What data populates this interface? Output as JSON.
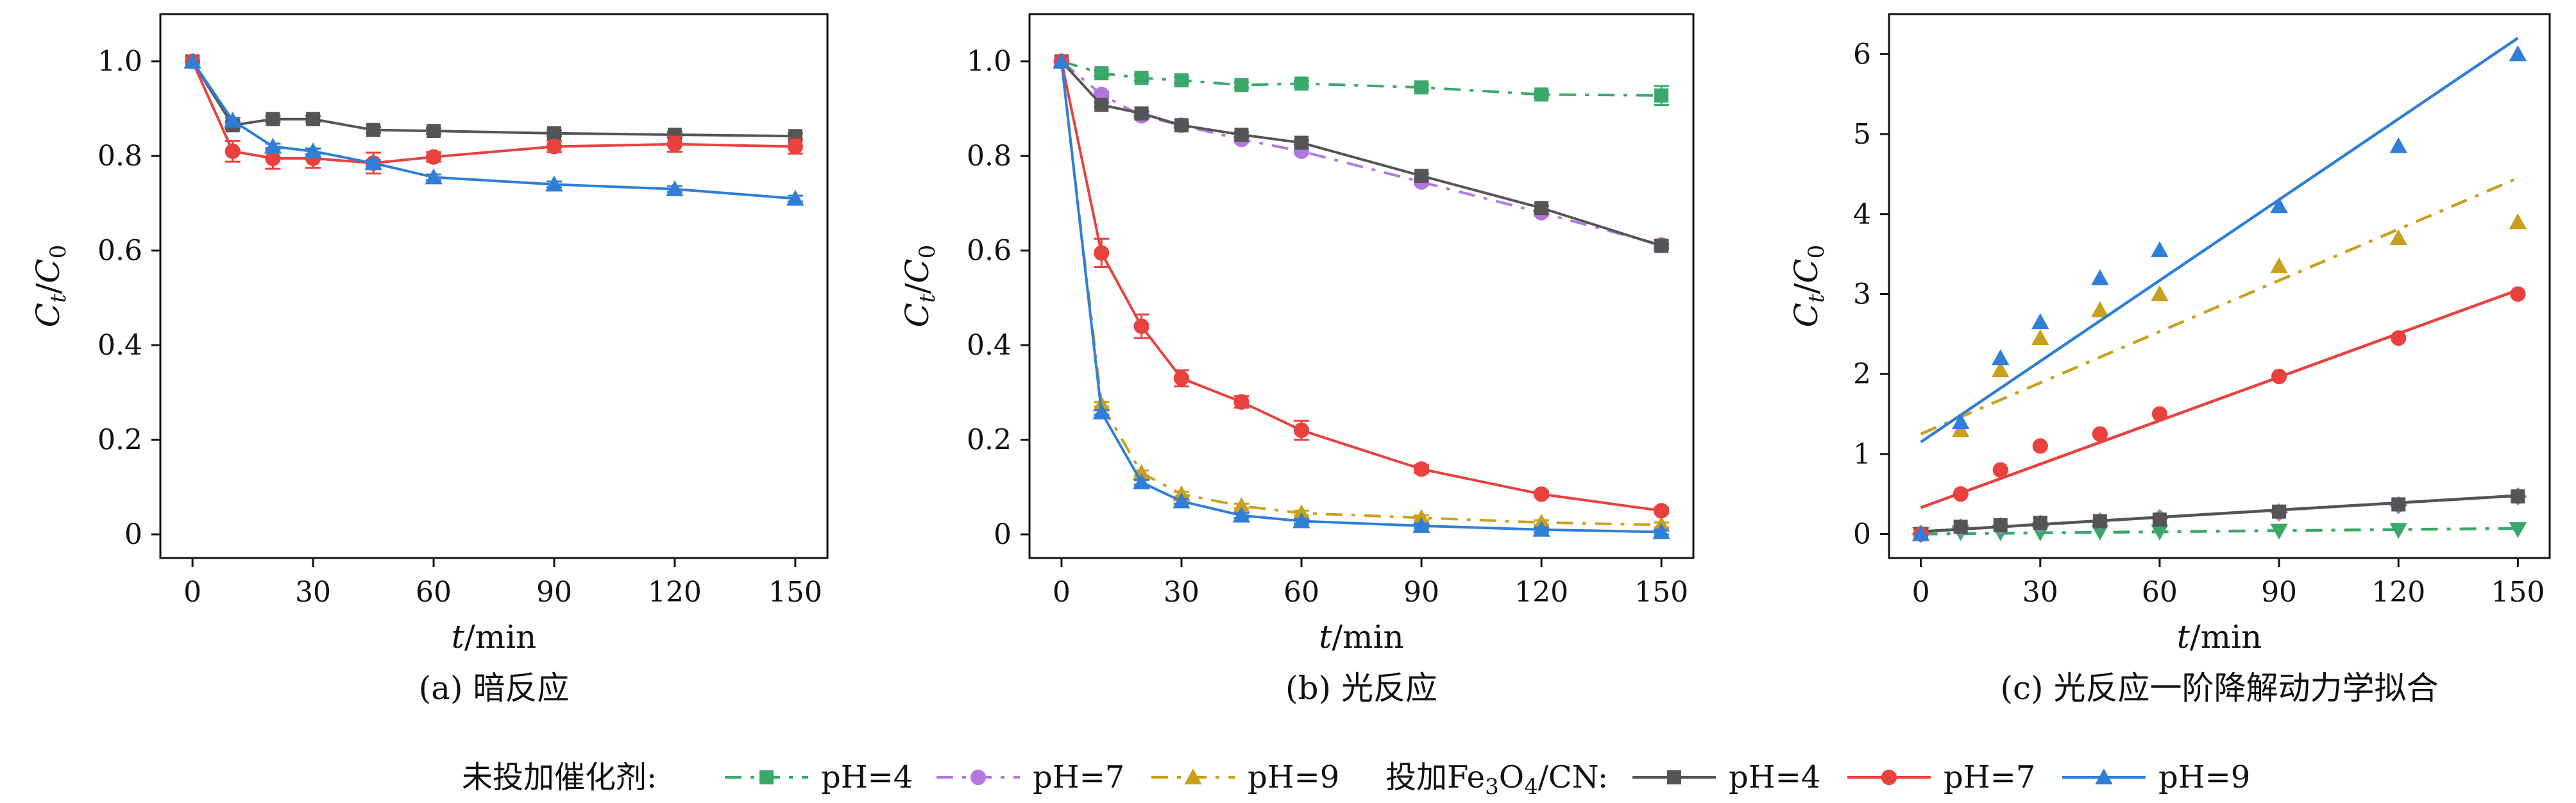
{
  "colors": {
    "green": "#3aa86a",
    "purple": "#b278e0",
    "gold": "#c9a01e",
    "gray": "#555555",
    "red": "#e8413e",
    "blue": "#2f7ed8"
  },
  "legend": {
    "group1_label": "未投加催化剂:",
    "group2_label_prefix": "投加Fe",
    "group2_sub1": "3",
    "group2_mid": "O",
    "group2_sub2": "4",
    "group2_label_suffix": "/CN:",
    "entries": [
      {
        "label": "pH=4",
        "color": "green",
        "marker": "square",
        "dash": true
      },
      {
        "label": "pH=7",
        "color": "purple",
        "marker": "circle",
        "dash": true
      },
      {
        "label": "pH=9",
        "color": "gold",
        "marker": "triangle",
        "dash": true
      },
      {
        "label": "pH=4",
        "color": "gray",
        "marker": "square",
        "dash": false
      },
      {
        "label": "pH=7",
        "color": "red",
        "marker": "circle",
        "dash": false
      },
      {
        "label": "pH=9",
        "color": "blue",
        "marker": "triangle",
        "dash": false
      }
    ]
  },
  "chart_data": [
    {
      "type": "line",
      "caption": "(a) 暗反应",
      "xlabel_var": "t",
      "xlabel_unit": "/min",
      "ylabel_num": "C",
      "ylabel_num_sub": "t",
      "ylabel_den": "C",
      "ylabel_den_sub": "0",
      "xlim": [
        -8,
        158
      ],
      "ylim": [
        -0.05,
        1.1
      ],
      "xticks": [
        0,
        30,
        60,
        90,
        120,
        150
      ],
      "yticks": [
        0,
        0.2,
        0.4,
        0.6,
        0.8,
        1.0
      ],
      "ytick_labels": [
        "0",
        "0.2",
        "0.4",
        "0.6",
        "0.8",
        "1.0"
      ],
      "x": [
        0,
        10,
        20,
        30,
        45,
        60,
        90,
        120,
        150
      ],
      "series": [
        {
          "color": "gray",
          "marker": "square",
          "dash": false,
          "values": [
            1.0,
            0.865,
            0.878,
            0.878,
            0.855,
            0.853,
            0.848,
            0.845,
            0.842
          ],
          "err": [
            0,
            0.008,
            0.006,
            0.006,
            0.006,
            0.006,
            0.006,
            0.006,
            0.006
          ]
        },
        {
          "color": "red",
          "marker": "circle",
          "dash": false,
          "values": [
            1.0,
            0.81,
            0.795,
            0.795,
            0.785,
            0.798,
            0.82,
            0.825,
            0.82
          ],
          "err": [
            0,
            0.022,
            0.022,
            0.02,
            0.022,
            0.01,
            0.012,
            0.016,
            0.015
          ]
        },
        {
          "color": "blue",
          "marker": "triangle",
          "dash": false,
          "values": [
            1.0,
            0.875,
            0.82,
            0.81,
            0.785,
            0.755,
            0.74,
            0.73,
            0.71
          ],
          "err": [
            0,
            0.006,
            0.006,
            0.006,
            0.006,
            0.006,
            0.006,
            0.006,
            0.006
          ]
        }
      ]
    },
    {
      "type": "line",
      "caption": "(b) 光反应",
      "xlabel_var": "t",
      "xlabel_unit": "/min",
      "ylabel_num": "C",
      "ylabel_num_sub": "t",
      "ylabel_den": "C",
      "ylabel_den_sub": "0",
      "xlim": [
        -8,
        158
      ],
      "ylim": [
        -0.05,
        1.1
      ],
      "xticks": [
        0,
        30,
        60,
        90,
        120,
        150
      ],
      "yticks": [
        0,
        0.2,
        0.4,
        0.6,
        0.8,
        1.0
      ],
      "ytick_labels": [
        "0",
        "0.2",
        "0.4",
        "0.6",
        "0.8",
        "1.0"
      ],
      "x": [
        0,
        10,
        20,
        30,
        45,
        60,
        90,
        120,
        150
      ],
      "series": [
        {
          "color": "green",
          "marker": "square",
          "dash": true,
          "values": [
            1.0,
            0.975,
            0.965,
            0.96,
            0.95,
            0.953,
            0.945,
            0.93,
            0.928
          ],
          "err": [
            0,
            0.006,
            0.006,
            0.006,
            0.006,
            0.006,
            0.006,
            0.006,
            0.02
          ]
        },
        {
          "color": "purple",
          "marker": "circle",
          "dash": true,
          "values": [
            1.0,
            0.93,
            0.885,
            0.865,
            0.835,
            0.81,
            0.745,
            0.68,
            0.612
          ],
          "err": [
            0,
            0.006,
            0.006,
            0.006,
            0.006,
            0.006,
            0.006,
            0.006,
            0.01
          ]
        },
        {
          "color": "gold",
          "marker": "triangle",
          "dash": true,
          "values": [
            1.0,
            0.275,
            0.13,
            0.085,
            0.06,
            0.045,
            0.035,
            0.025,
            0.02
          ],
          "err": [
            0,
            0.005,
            0.005,
            0.005,
            0.005,
            0.005,
            0.005,
            0.005,
            0.005
          ]
        },
        {
          "color": "gray",
          "marker": "square",
          "dash": false,
          "values": [
            1.0,
            0.908,
            0.89,
            0.865,
            0.845,
            0.828,
            0.758,
            0.69,
            0.61
          ],
          "err": [
            0,
            0.005,
            0.005,
            0.005,
            0.005,
            0.005,
            0.005,
            0.005,
            0.005
          ]
        },
        {
          "color": "red",
          "marker": "circle",
          "dash": false,
          "values": [
            1.0,
            0.595,
            0.44,
            0.33,
            0.28,
            0.22,
            0.138,
            0.085,
            0.05
          ],
          "err": [
            0,
            0.03,
            0.025,
            0.017,
            0.012,
            0.02,
            0.008,
            0.006,
            0.006
          ]
        },
        {
          "color": "blue",
          "marker": "triangle",
          "dash": false,
          "values": [
            1.0,
            0.258,
            0.11,
            0.07,
            0.04,
            0.028,
            0.018,
            0.01,
            0.005
          ],
          "err": [
            0,
            0.005,
            0.005,
            0.005,
            0.005,
            0.005,
            0.005,
            0.005,
            0.005
          ]
        }
      ]
    },
    {
      "type": "scatter",
      "caption": "(c) 光反应一阶降解动力学拟合",
      "xlabel_var": "t",
      "xlabel_unit": "/min",
      "ylabel_num": "C",
      "ylabel_num_sub": "t",
      "ylabel_den": "C",
      "ylabel_den_sub": "0",
      "xlim": [
        -8,
        158
      ],
      "ylim": [
        -0.3,
        6.5
      ],
      "xticks": [
        0,
        30,
        60,
        90,
        120,
        150
      ],
      "yticks": [
        0,
        1,
        2,
        3,
        4,
        5,
        6
      ],
      "ytick_labels": [
        "0",
        "1",
        "2",
        "3",
        "4",
        "5",
        "6"
      ],
      "x": [
        0,
        10,
        20,
        30,
        45,
        60,
        90,
        120,
        150
      ],
      "series": [
        {
          "color": "green",
          "marker": "triangle-down",
          "dash": true,
          "values": [
            0.0,
            0.02,
            0.02,
            0.02,
            0.03,
            0.03,
            0.04,
            0.05,
            0.06
          ],
          "fit": [
            0.0,
            0.07
          ]
        },
        {
          "color": "purple",
          "marker": "diamond",
          "dash": true,
          "values": [
            0.0,
            0.08,
            0.1,
            0.13,
            0.16,
            0.2,
            0.27,
            0.36,
            0.47
          ],
          "fit": [
            0.03,
            0.48
          ]
        },
        {
          "color": "gold",
          "marker": "triangle",
          "dash": true,
          "values": [
            0.0,
            1.3,
            2.05,
            2.45,
            2.8,
            3.0,
            3.35,
            3.7,
            3.9
          ],
          "fit": [
            1.25,
            4.45
          ]
        },
        {
          "color": "gray",
          "marker": "square",
          "dash": false,
          "values": [
            0.0,
            0.09,
            0.11,
            0.14,
            0.16,
            0.18,
            0.28,
            0.37,
            0.47
          ],
          "fit": [
            0.03,
            0.48
          ]
        },
        {
          "color": "red",
          "marker": "circle",
          "dash": false,
          "values": [
            0.0,
            0.5,
            0.8,
            1.1,
            1.25,
            1.5,
            1.97,
            2.45,
            3.0
          ],
          "fit": [
            0.33,
            3.05
          ]
        },
        {
          "color": "blue",
          "marker": "triangle",
          "dash": false,
          "values": [
            0.0,
            1.4,
            2.2,
            2.65,
            3.2,
            3.55,
            4.1,
            4.85,
            6.0
          ],
          "fit": [
            1.15,
            6.2
          ]
        }
      ]
    }
  ]
}
